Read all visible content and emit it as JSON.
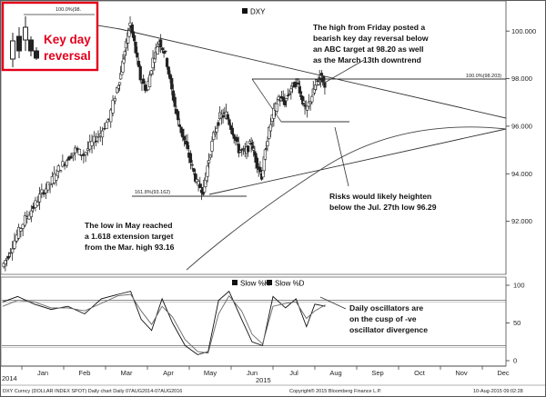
{
  "chart_data": {
    "type": "candlestick",
    "ticker_label": "DXY",
    "ylim": [
      90.0,
      101.0
    ],
    "yticks": [
      "92.000",
      "94.000",
      "96.000",
      "98.000",
      "100.000"
    ],
    "ytick_values": [
      92,
      94,
      96,
      98,
      100
    ],
    "months": [
      "Jan",
      "Feb",
      "Mar",
      "Apr",
      "May",
      "Jun",
      "Jul",
      "Aug",
      "Sep",
      "Oct",
      "Nov",
      "Dec"
    ],
    "year_labels": [
      "2014",
      "2015"
    ],
    "price_path": [
      {
        "m": -0.95,
        "v": 90.1
      },
      {
        "m": -0.8,
        "v": 90.6
      },
      {
        "m": -0.6,
        "v": 91.4
      },
      {
        "m": -0.4,
        "v": 92.1
      },
      {
        "m": -0.2,
        "v": 92.6
      },
      {
        "m": 0.0,
        "v": 93.2
      },
      {
        "m": 0.2,
        "v": 93.6
      },
      {
        "m": 0.4,
        "v": 94.2
      },
      {
        "m": 0.6,
        "v": 94.6
      },
      {
        "m": 0.8,
        "v": 95.0
      },
      {
        "m": 1.0,
        "v": 94.8
      },
      {
        "m": 1.2,
        "v": 95.3
      },
      {
        "m": 1.4,
        "v": 95.7
      },
      {
        "m": 1.6,
        "v": 96.3
      },
      {
        "m": 1.8,
        "v": 97.6
      },
      {
        "m": 1.9,
        "v": 98.4
      },
      {
        "m": 2.0,
        "v": 99.4
      },
      {
        "m": 2.1,
        "v": 100.3
      },
      {
        "m": 2.2,
        "v": 99.5
      },
      {
        "m": 2.35,
        "v": 98.0
      },
      {
        "m": 2.5,
        "v": 97.5
      },
      {
        "m": 2.65,
        "v": 98.8
      },
      {
        "m": 2.8,
        "v": 99.6
      },
      {
        "m": 2.95,
        "v": 99.0
      },
      {
        "m": 3.1,
        "v": 97.5
      },
      {
        "m": 3.25,
        "v": 96.2
      },
      {
        "m": 3.4,
        "v": 95.4
      },
      {
        "m": 3.55,
        "v": 94.5
      },
      {
        "m": 3.7,
        "v": 93.6
      },
      {
        "m": 3.85,
        "v": 93.3
      },
      {
        "m": 3.95,
        "v": 94.3
      },
      {
        "m": 4.1,
        "v": 95.6
      },
      {
        "m": 4.25,
        "v": 96.4
      },
      {
        "m": 4.4,
        "v": 96.5
      },
      {
        "m": 4.55,
        "v": 95.8
      },
      {
        "m": 4.7,
        "v": 95.0
      },
      {
        "m": 4.85,
        "v": 94.9
      },
      {
        "m": 5.0,
        "v": 95.3
      },
      {
        "m": 5.1,
        "v": 94.6
      },
      {
        "m": 5.25,
        "v": 93.9
      },
      {
        "m": 5.35,
        "v": 95.2
      },
      {
        "m": 5.5,
        "v": 96.4
      },
      {
        "m": 5.65,
        "v": 97.2
      },
      {
        "m": 5.8,
        "v": 97.0
      },
      {
        "m": 5.95,
        "v": 97.6
      },
      {
        "m": 6.1,
        "v": 97.9
      },
      {
        "m": 6.2,
        "v": 97.2
      },
      {
        "m": 6.3,
        "v": 96.6
      },
      {
        "m": 6.45,
        "v": 97.3
      },
      {
        "m": 6.55,
        "v": 97.8
      },
      {
        "m": 6.65,
        "v": 98.1
      },
      {
        "m": 6.75,
        "v": 97.8
      }
    ],
    "stochastic": {
      "labels": [
        "Slow %K",
        "Slow %D"
      ],
      "ylim": [
        0,
        100
      ],
      "yticks": [
        "0",
        "50",
        "100"
      ],
      "ytick_values": [
        0,
        50,
        100
      ],
      "reference_levels": [
        80,
        20
      ],
      "k": [
        {
          "m": -1.0,
          "v": 78
        },
        {
          "m": -0.6,
          "v": 85
        },
        {
          "m": -0.2,
          "v": 75
        },
        {
          "m": 0.2,
          "v": 68
        },
        {
          "m": 0.6,
          "v": 72
        },
        {
          "m": 1.0,
          "v": 62
        },
        {
          "m": 1.4,
          "v": 82
        },
        {
          "m": 1.8,
          "v": 88
        },
        {
          "m": 2.1,
          "v": 92
        },
        {
          "m": 2.35,
          "v": 55
        },
        {
          "m": 2.6,
          "v": 40
        },
        {
          "m": 2.85,
          "v": 82
        },
        {
          "m": 3.1,
          "v": 50
        },
        {
          "m": 3.4,
          "v": 20
        },
        {
          "m": 3.7,
          "v": 8
        },
        {
          "m": 3.95,
          "v": 12
        },
        {
          "m": 4.2,
          "v": 80
        },
        {
          "m": 4.45,
          "v": 92
        },
        {
          "m": 4.75,
          "v": 55
        },
        {
          "m": 5.0,
          "v": 25
        },
        {
          "m": 5.25,
          "v": 20
        },
        {
          "m": 5.5,
          "v": 85
        },
        {
          "m": 5.8,
          "v": 70
        },
        {
          "m": 6.05,
          "v": 82
        },
        {
          "m": 6.3,
          "v": 45
        },
        {
          "m": 6.5,
          "v": 75
        },
        {
          "m": 6.75,
          "v": 72
        }
      ],
      "d": [
        {
          "m": -1.0,
          "v": 72
        },
        {
          "m": -0.6,
          "v": 80
        },
        {
          "m": -0.2,
          "v": 78
        },
        {
          "m": 0.2,
          "v": 70
        },
        {
          "m": 0.6,
          "v": 70
        },
        {
          "m": 1.0,
          "v": 66
        },
        {
          "m": 1.4,
          "v": 76
        },
        {
          "m": 1.8,
          "v": 86
        },
        {
          "m": 2.1,
          "v": 88
        },
        {
          "m": 2.35,
          "v": 66
        },
        {
          "m": 2.6,
          "v": 48
        },
        {
          "m": 2.85,
          "v": 72
        },
        {
          "m": 3.1,
          "v": 58
        },
        {
          "m": 3.4,
          "v": 28
        },
        {
          "m": 3.7,
          "v": 12
        },
        {
          "m": 3.95,
          "v": 10
        },
        {
          "m": 4.2,
          "v": 62
        },
        {
          "m": 4.45,
          "v": 86
        },
        {
          "m": 4.75,
          "v": 66
        },
        {
          "m": 5.0,
          "v": 35
        },
        {
          "m": 5.25,
          "v": 22
        },
        {
          "m": 5.5,
          "v": 72
        },
        {
          "m": 5.8,
          "v": 76
        },
        {
          "m": 6.05,
          "v": 78
        },
        {
          "m": 6.3,
          "v": 56
        },
        {
          "m": 6.5,
          "v": 66
        },
        {
          "m": 6.75,
          "v": 74
        }
      ]
    },
    "levels": {
      "fib_100_label": "100.0%(98.203)",
      "fib_100_value": 98.203,
      "fib_1618_label": "161.8%(93.162)",
      "fib_1618_value": 93.162,
      "support_value": 96.29,
      "fib_100_inset_label": "100.0%(98."
    }
  },
  "annotations": {
    "key_day_line1": "Key day",
    "key_day_line2": "reversal",
    "high_friday": [
      "The high from Friday posted a",
      "bearish key day reversal below",
      "an ABC target at 98.20 as well",
      "as the March 13th downtrend"
    ],
    "risks": [
      "Risks would likely heighten",
      "below the Jul. 27th low 96.29"
    ],
    "low_may": [
      "The low in May reached",
      "a 1.618 extension target",
      "from the Mar. high 93.16"
    ],
    "oscillators": [
      "Daily oscillators are",
      "on the cusp of -ve",
      "oscillator divergence"
    ]
  },
  "footer": {
    "left": "DXY Curncy (DOLLAR INDEX SPOT) Daily chart  Daily 07AUG2014-07AUG2016",
    "center": "Copyright® 2015 Bloomberg Finance L.P.",
    "right": "10-Aug-2015 09:02:28"
  },
  "colors": {
    "accent_red": "#e3001b",
    "line": "#222222",
    "grid": "#999999"
  }
}
